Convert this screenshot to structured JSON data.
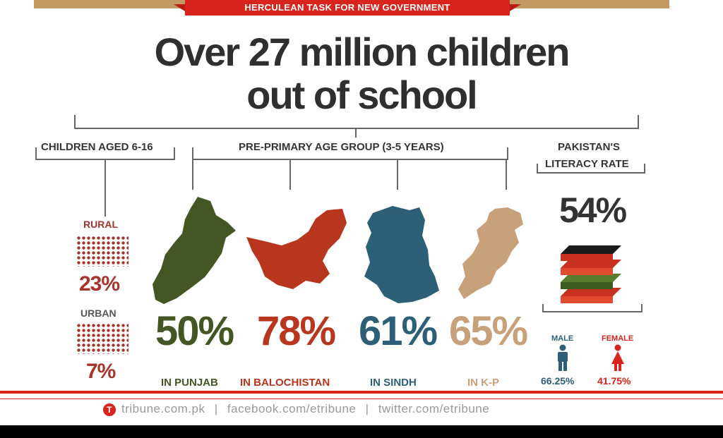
{
  "banner": {
    "text": "HERCULEAN TASK FOR NEW GOVERNMENT"
  },
  "headline": {
    "line1": "Over 27 million children",
    "line2": "out of school"
  },
  "children_aged": {
    "label": "CHILDREN AGED 6-16",
    "rural_label": "RURAL",
    "rural_pct": "23%",
    "urban_label": "URBAN",
    "urban_pct": "7%"
  },
  "pre_primary": {
    "label": "PRE-PRIMARY AGE GROUP (3-5 YEARS)",
    "provinces": [
      {
        "pct": "50%",
        "name": "IN PUNJAB",
        "color": "#445623"
      },
      {
        "pct": "78%",
        "name": "IN BALOCHISTAN",
        "color": "#b8361d"
      },
      {
        "pct": "61%",
        "name": "IN SINDH",
        "color": "#2e5f78"
      },
      {
        "pct": "65%",
        "name": "IN K-P",
        "color": "#c8a07a"
      }
    ]
  },
  "literacy": {
    "label_line1": "PAKISTAN'S",
    "label_line2": "LITERACY RATE",
    "pct": "54%",
    "male_label": "MALE",
    "male_pct": "66.25%",
    "female_label": "FEMALE",
    "female_pct": "41.75%"
  },
  "footer": {
    "site": "tribune.com.pk",
    "sep1": "|",
    "facebook": "facebook.com/etribune",
    "sep2": "|",
    "twitter": "twitter.com/etribune",
    "logo_letter": "T"
  }
}
